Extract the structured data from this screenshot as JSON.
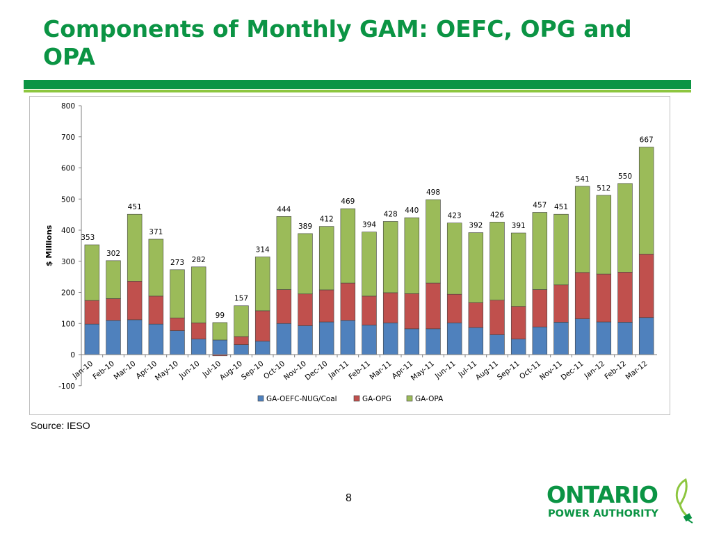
{
  "slide": {
    "title": "Components of Monthly GAM: OEFC, OPG and OPA",
    "source": "Source: IESO",
    "page_number": "8",
    "logo": {
      "line1": "ONTARIO",
      "line2": "POWER AUTHORITY",
      "icon": "plug-leaf-icon",
      "color": "#0b9444"
    }
  },
  "chart_data": {
    "type": "bar",
    "stacked": true,
    "categories": [
      "Jan-10",
      "Feb-10",
      "Mar-10",
      "Apr-10",
      "May-10",
      "Jun-10",
      "Jul-10",
      "Aug-10",
      "Sep-10",
      "Oct-10",
      "Nov-10",
      "Dec-10",
      "Jan-11",
      "Feb-11",
      "Mar-11",
      "Apr-11",
      "May-11",
      "Jun-11",
      "Jul-11",
      "Aug-11",
      "Sep-11",
      "Oct-11",
      "Nov-11",
      "Dec-11",
      "Jan-12",
      "Feb-12",
      "Mar-12"
    ],
    "series": [
      {
        "name": "GA-OEFC-NUG/Coal",
        "color": "#4f81bd",
        "values": [
          98,
          110,
          112,
          98,
          77,
          50,
          47,
          32,
          43,
          100,
          93,
          105,
          110,
          95,
          102,
          83,
          83,
          102,
          87,
          64,
          50,
          89,
          104,
          115,
          105,
          104,
          119
        ]
      },
      {
        "name": "GA-OPG",
        "color": "#c0504d",
        "values": [
          76,
          70,
          124,
          90,
          41,
          52,
          -4,
          26,
          98,
          109,
          102,
          103,
          120,
          93,
          97,
          113,
          147,
          92,
          80,
          111,
          105,
          120,
          120,
          149,
          154,
          161,
          204
        ]
      },
      {
        "name": "GA-OPA",
        "color": "#9bbb59",
        "values": [
          179,
          122,
          215,
          183,
          155,
          180,
          56,
          99,
          173,
          235,
          194,
          204,
          239,
          206,
          229,
          244,
          268,
          229,
          225,
          251,
          236,
          248,
          227,
          277,
          253,
          285,
          344
        ]
      }
    ],
    "totals": [
      353,
      302,
      451,
      371,
      273,
      282,
      99,
      157,
      314,
      444,
      389,
      412,
      469,
      394,
      428,
      440,
      498,
      423,
      392,
      426,
      391,
      457,
      451,
      541,
      512,
      550,
      667
    ],
    "ylabel": "$ Millions",
    "xlabel": "",
    "ylim": [
      -100,
      800
    ],
    "yticks": [
      -100,
      0,
      100,
      200,
      300,
      400,
      500,
      600,
      700,
      800
    ],
    "grid": false,
    "legend_position": "bottom"
  }
}
